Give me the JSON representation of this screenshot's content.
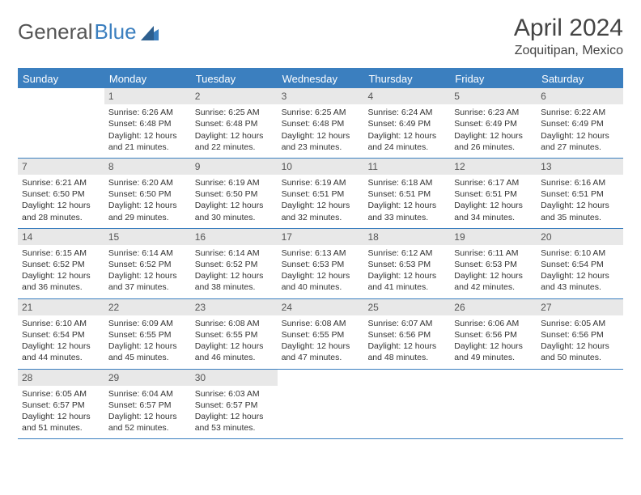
{
  "logo": {
    "part1": "General",
    "part2": "Blue"
  },
  "title": "April 2024",
  "subtitle": "Zoquitipan, Mexico",
  "colors": {
    "accent": "#3b7fbf",
    "header_bg": "#3b7fbf",
    "header_text": "#ffffff",
    "daynum_bg": "#e8e8e8",
    "text": "#333333",
    "page_bg": "#ffffff"
  },
  "day_headers": [
    "Sunday",
    "Monday",
    "Tuesday",
    "Wednesday",
    "Thursday",
    "Friday",
    "Saturday"
  ],
  "weeks": [
    [
      {
        "empty": true
      },
      {
        "n": "1",
        "sunrise": "6:26 AM",
        "sunset": "6:48 PM",
        "daylight": "12 hours and 21 minutes."
      },
      {
        "n": "2",
        "sunrise": "6:25 AM",
        "sunset": "6:48 PM",
        "daylight": "12 hours and 22 minutes."
      },
      {
        "n": "3",
        "sunrise": "6:25 AM",
        "sunset": "6:48 PM",
        "daylight": "12 hours and 23 minutes."
      },
      {
        "n": "4",
        "sunrise": "6:24 AM",
        "sunset": "6:49 PM",
        "daylight": "12 hours and 24 minutes."
      },
      {
        "n": "5",
        "sunrise": "6:23 AM",
        "sunset": "6:49 PM",
        "daylight": "12 hours and 26 minutes."
      },
      {
        "n": "6",
        "sunrise": "6:22 AM",
        "sunset": "6:49 PM",
        "daylight": "12 hours and 27 minutes."
      }
    ],
    [
      {
        "n": "7",
        "sunrise": "6:21 AM",
        "sunset": "6:50 PM",
        "daylight": "12 hours and 28 minutes."
      },
      {
        "n": "8",
        "sunrise": "6:20 AM",
        "sunset": "6:50 PM",
        "daylight": "12 hours and 29 minutes."
      },
      {
        "n": "9",
        "sunrise": "6:19 AM",
        "sunset": "6:50 PM",
        "daylight": "12 hours and 30 minutes."
      },
      {
        "n": "10",
        "sunrise": "6:19 AM",
        "sunset": "6:51 PM",
        "daylight": "12 hours and 32 minutes."
      },
      {
        "n": "11",
        "sunrise": "6:18 AM",
        "sunset": "6:51 PM",
        "daylight": "12 hours and 33 minutes."
      },
      {
        "n": "12",
        "sunrise": "6:17 AM",
        "sunset": "6:51 PM",
        "daylight": "12 hours and 34 minutes."
      },
      {
        "n": "13",
        "sunrise": "6:16 AM",
        "sunset": "6:51 PM",
        "daylight": "12 hours and 35 minutes."
      }
    ],
    [
      {
        "n": "14",
        "sunrise": "6:15 AM",
        "sunset": "6:52 PM",
        "daylight": "12 hours and 36 minutes."
      },
      {
        "n": "15",
        "sunrise": "6:14 AM",
        "sunset": "6:52 PM",
        "daylight": "12 hours and 37 minutes."
      },
      {
        "n": "16",
        "sunrise": "6:14 AM",
        "sunset": "6:52 PM",
        "daylight": "12 hours and 38 minutes."
      },
      {
        "n": "17",
        "sunrise": "6:13 AM",
        "sunset": "6:53 PM",
        "daylight": "12 hours and 40 minutes."
      },
      {
        "n": "18",
        "sunrise": "6:12 AM",
        "sunset": "6:53 PM",
        "daylight": "12 hours and 41 minutes."
      },
      {
        "n": "19",
        "sunrise": "6:11 AM",
        "sunset": "6:53 PM",
        "daylight": "12 hours and 42 minutes."
      },
      {
        "n": "20",
        "sunrise": "6:10 AM",
        "sunset": "6:54 PM",
        "daylight": "12 hours and 43 minutes."
      }
    ],
    [
      {
        "n": "21",
        "sunrise": "6:10 AM",
        "sunset": "6:54 PM",
        "daylight": "12 hours and 44 minutes."
      },
      {
        "n": "22",
        "sunrise": "6:09 AM",
        "sunset": "6:55 PM",
        "daylight": "12 hours and 45 minutes."
      },
      {
        "n": "23",
        "sunrise": "6:08 AM",
        "sunset": "6:55 PM",
        "daylight": "12 hours and 46 minutes."
      },
      {
        "n": "24",
        "sunrise": "6:08 AM",
        "sunset": "6:55 PM",
        "daylight": "12 hours and 47 minutes."
      },
      {
        "n": "25",
        "sunrise": "6:07 AM",
        "sunset": "6:56 PM",
        "daylight": "12 hours and 48 minutes."
      },
      {
        "n": "26",
        "sunrise": "6:06 AM",
        "sunset": "6:56 PM",
        "daylight": "12 hours and 49 minutes."
      },
      {
        "n": "27",
        "sunrise": "6:05 AM",
        "sunset": "6:56 PM",
        "daylight": "12 hours and 50 minutes."
      }
    ],
    [
      {
        "n": "28",
        "sunrise": "6:05 AM",
        "sunset": "6:57 PM",
        "daylight": "12 hours and 51 minutes."
      },
      {
        "n": "29",
        "sunrise": "6:04 AM",
        "sunset": "6:57 PM",
        "daylight": "12 hours and 52 minutes."
      },
      {
        "n": "30",
        "sunrise": "6:03 AM",
        "sunset": "6:57 PM",
        "daylight": "12 hours and 53 minutes."
      },
      {
        "empty": true
      },
      {
        "empty": true
      },
      {
        "empty": true
      },
      {
        "empty": true
      }
    ]
  ],
  "labels": {
    "sunrise_prefix": "Sunrise: ",
    "sunset_prefix": "Sunset: ",
    "daylight_prefix": "Daylight: "
  }
}
